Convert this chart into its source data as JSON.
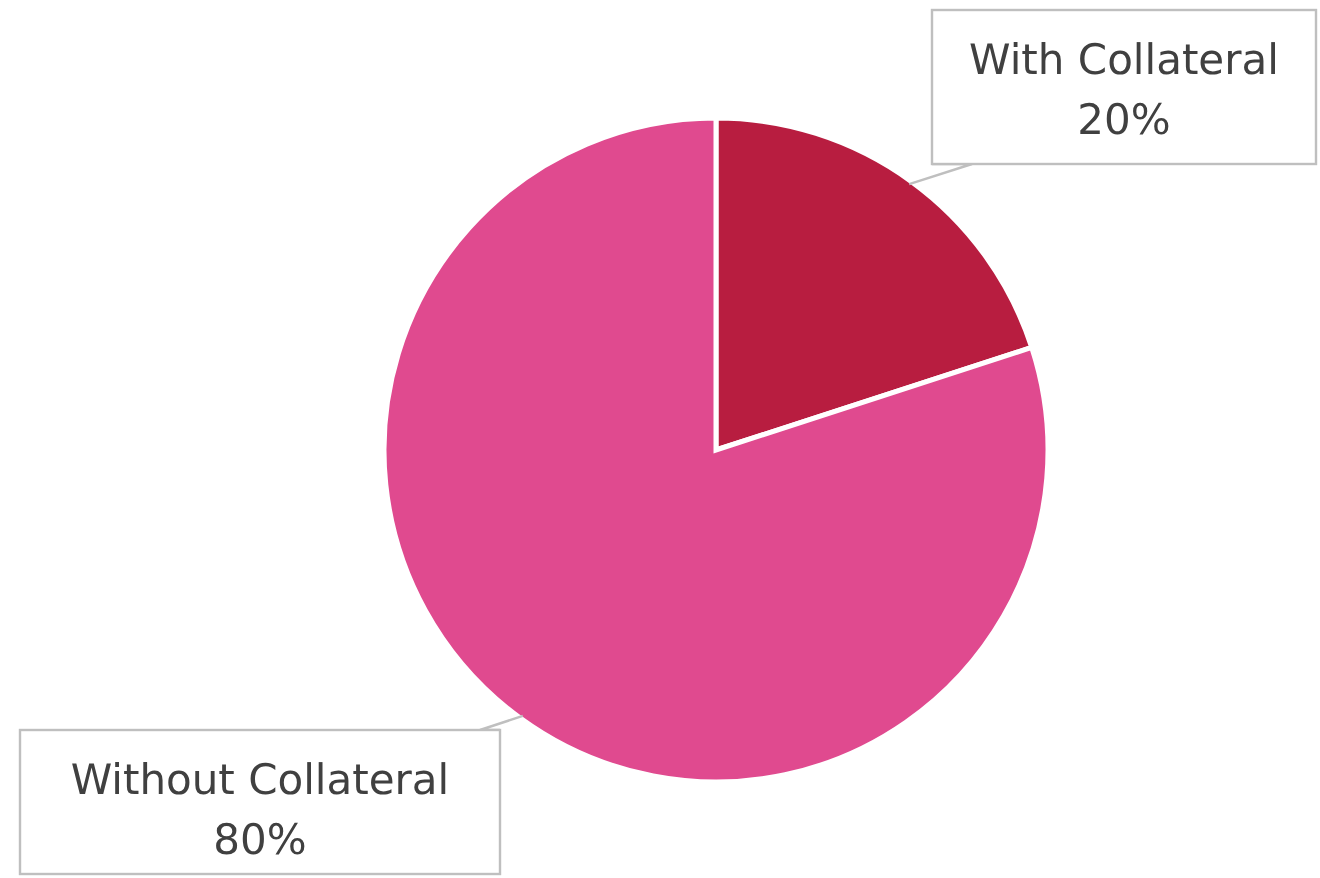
{
  "chart_data": {
    "type": "pie",
    "categories": [
      "With Collateral",
      "Without Collateral"
    ],
    "values": [
      20,
      80
    ],
    "colors": [
      "#b81d40",
      "#e04a8f"
    ],
    "value_labels": [
      "20%",
      "80%"
    ]
  }
}
